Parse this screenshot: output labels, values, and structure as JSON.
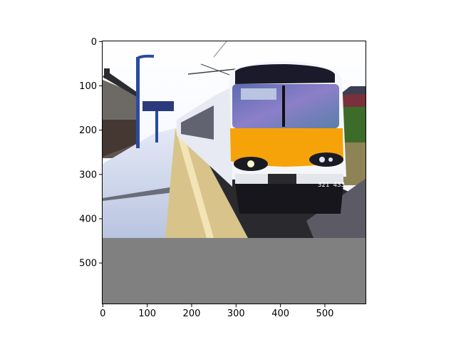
{
  "figure": {
    "background": "#ffffff",
    "padding_color": "#808080"
  },
  "image": {
    "subject": "train-at-platform",
    "train_number": "321 433",
    "colors": {
      "sky": "#fafcff",
      "train_body": "#f4f6fa",
      "train_band": "#f6a30a",
      "platform": "#c8d2ea",
      "track": "#2a2a2e"
    }
  },
  "axes": {
    "x_ticks": [
      {
        "value": 0,
        "label": "0"
      },
      {
        "value": 100,
        "label": "100"
      },
      {
        "value": 200,
        "label": "200"
      },
      {
        "value": 300,
        "label": "300"
      },
      {
        "value": 400,
        "label": "400"
      },
      {
        "value": 500,
        "label": "500"
      }
    ],
    "y_ticks": [
      {
        "value": 0,
        "label": "0"
      },
      {
        "value": 100,
        "label": "100"
      },
      {
        "value": 200,
        "label": "200"
      },
      {
        "value": 300,
        "label": "300"
      },
      {
        "value": 400,
        "label": "400"
      },
      {
        "value": 500,
        "label": "500"
      }
    ],
    "xlim": [
      -0.5,
      591.5
    ],
    "ylim": [
      591.5,
      -0.5
    ],
    "image_content_height": 441
  }
}
